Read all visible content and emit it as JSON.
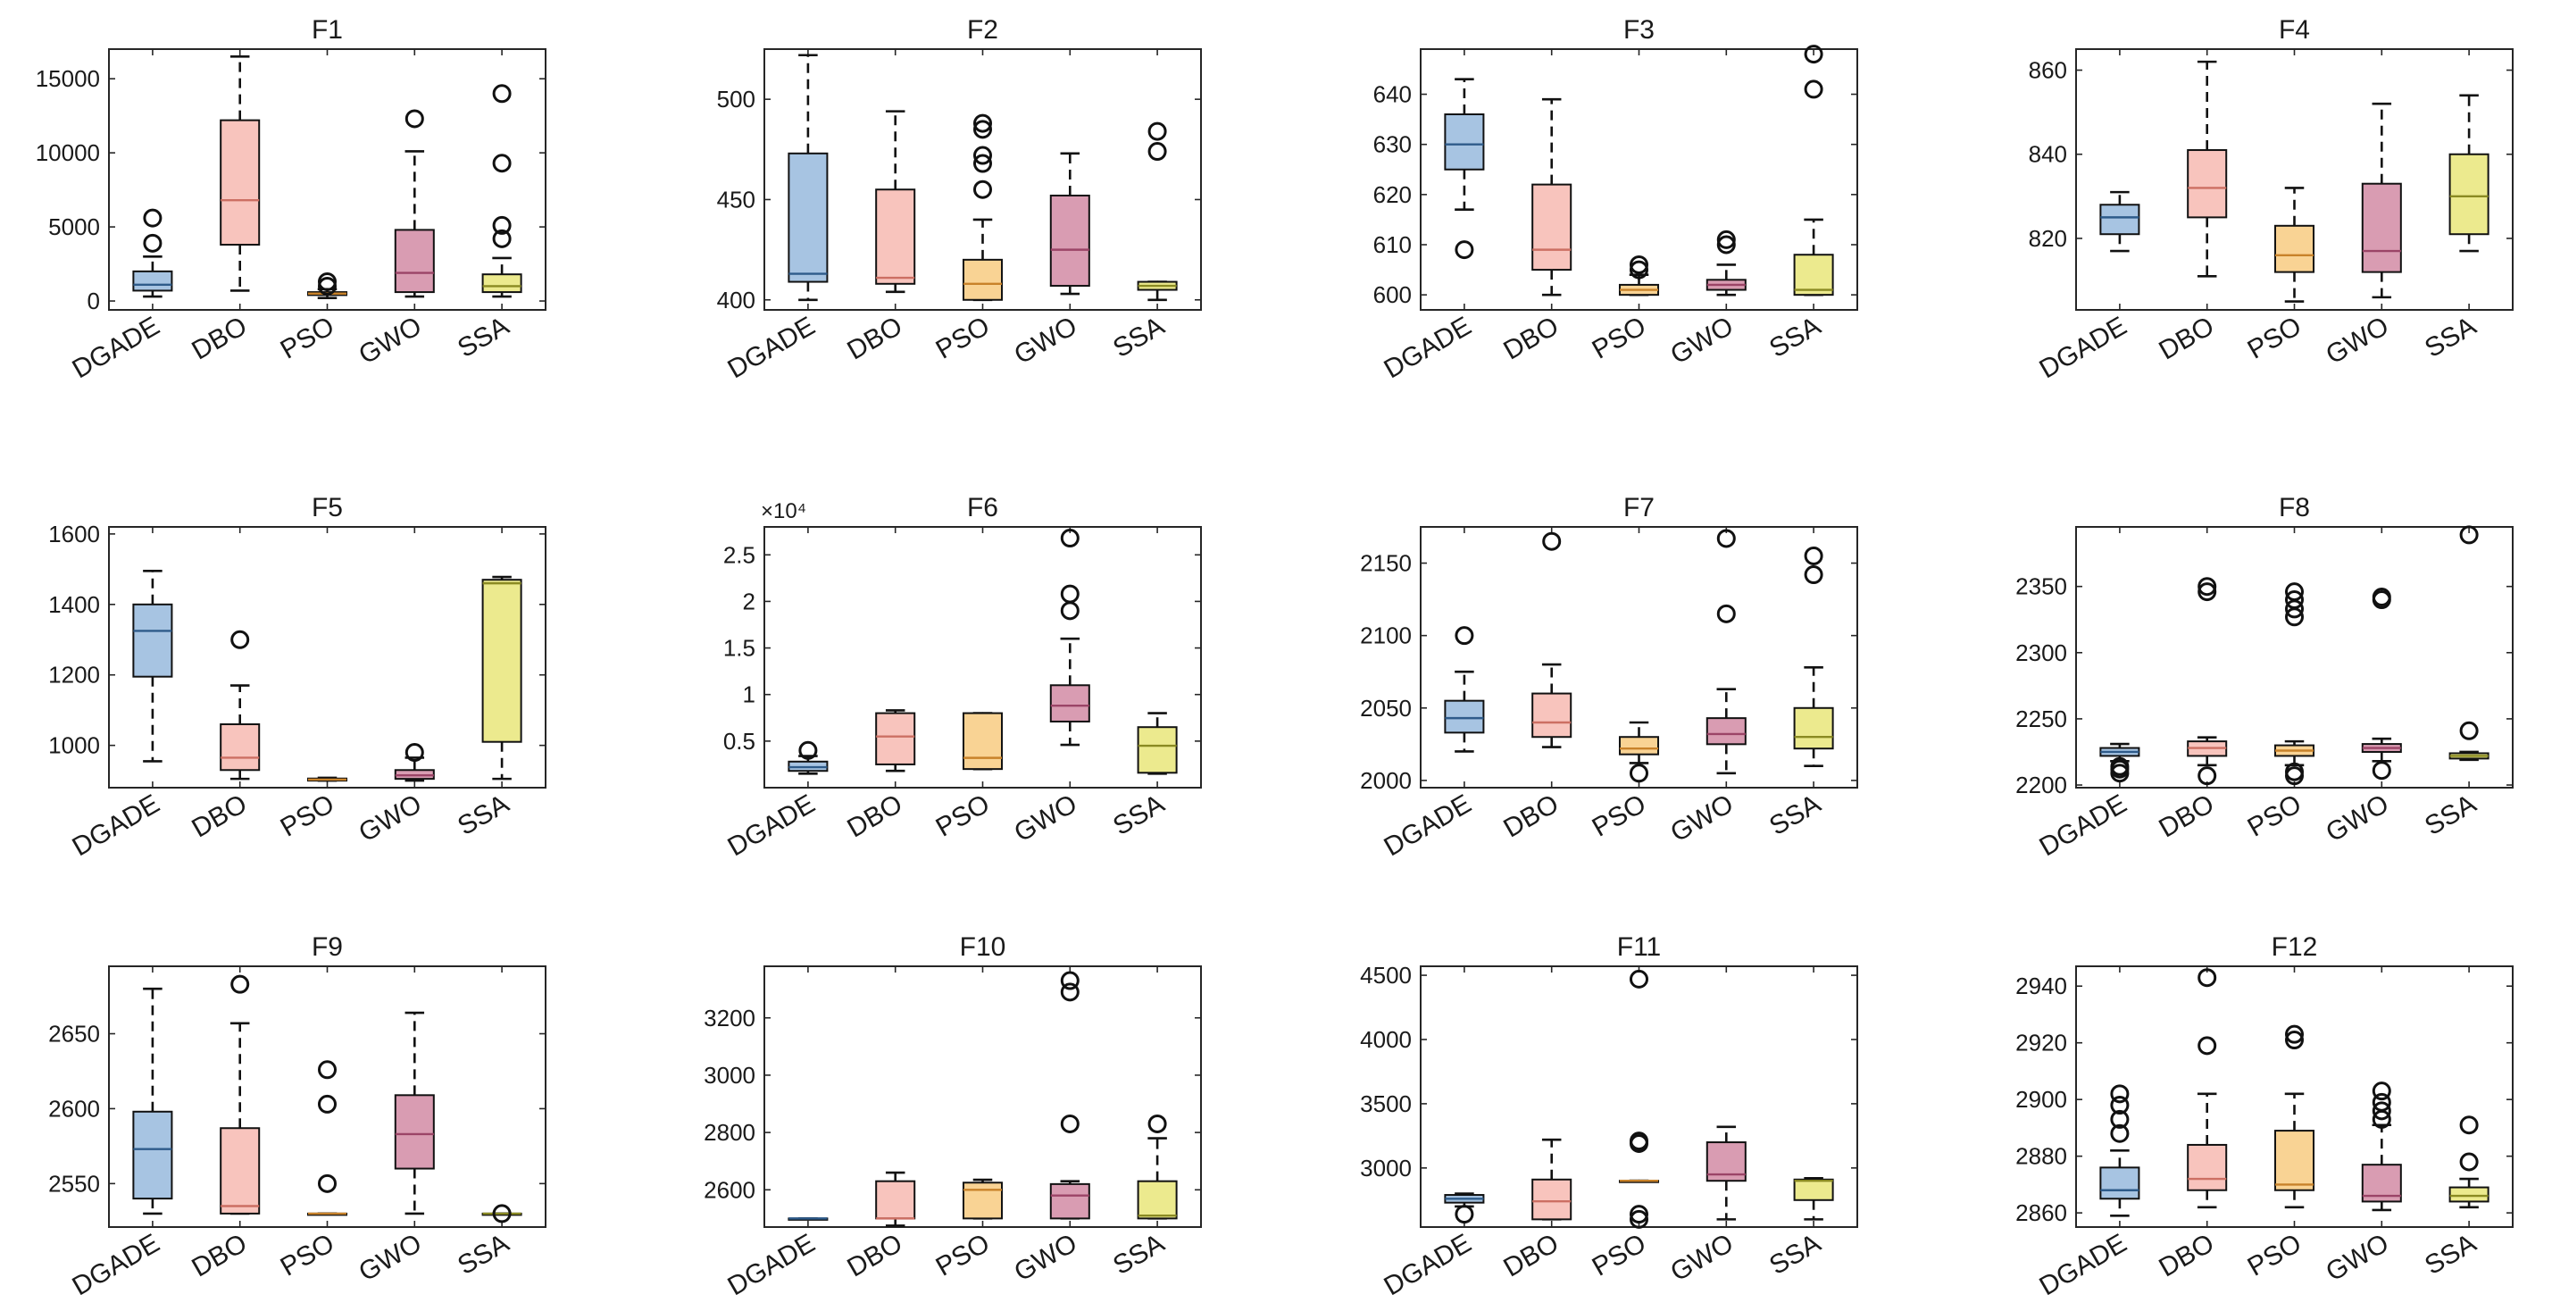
{
  "figure": {
    "categories": [
      "DGADE",
      "DBO",
      "PSO",
      "GWO",
      "SSA"
    ],
    "colors": {
      "DGADE": "#a7c4e2",
      "DBO": "#f8c4bd",
      "PSO": "#f9d394",
      "GWO": "#d99cb2",
      "SSA": "#ecea8e",
      "DGADE_median": "#2e5b8a",
      "DBO_median": "#cc6f63",
      "PSO_median": "#c8822a",
      "GWO_median": "#9b4467",
      "SSA_median": "#8a8a22"
    }
  },
  "chart_data": [
    {
      "type": "box",
      "title": "F1",
      "categories": [
        "DGADE",
        "DBO",
        "PSO",
        "GWO",
        "SSA"
      ],
      "ylim": [
        -600,
        17000
      ],
      "yticks": [
        0,
        5000,
        10000,
        15000
      ],
      "ytick_labels": [
        "0",
        "5000",
        "10000",
        "15000"
      ],
      "exponent_label": "",
      "boxes": [
        {
          "q1": 700,
          "median": 1100,
          "q3": 2000,
          "whislo": 300,
          "whishi": 3000,
          "outliers": [
            3900,
            5600
          ]
        },
        {
          "q1": 3800,
          "median": 6800,
          "q3": 12200,
          "whislo": 700,
          "whishi": 16500,
          "outliers": []
        },
        {
          "q1": 400,
          "median": 500,
          "q3": 600,
          "whislo": 200,
          "whishi": 800,
          "outliers": [
            1000,
            1300
          ]
        },
        {
          "q1": 600,
          "median": 1900,
          "q3": 4800,
          "whislo": 300,
          "whishi": 10100,
          "outliers": [
            12300
          ]
        },
        {
          "q1": 600,
          "median": 1000,
          "q3": 1800,
          "whislo": 300,
          "whishi": 2900,
          "outliers": [
            4200,
            5100,
            9300,
            14000
          ]
        }
      ]
    },
    {
      "type": "box",
      "title": "F2",
      "categories": [
        "DGADE",
        "DBO",
        "PSO",
        "GWO",
        "SSA"
      ],
      "ylim": [
        395,
        525
      ],
      "yticks": [
        400,
        450,
        500
      ],
      "ytick_labels": [
        "400",
        "450",
        "500"
      ],
      "exponent_label": "",
      "boxes": [
        {
          "q1": 409,
          "median": 413,
          "q3": 473,
          "whislo": 400,
          "whishi": 522,
          "outliers": []
        },
        {
          "q1": 408,
          "median": 411,
          "q3": 455,
          "whislo": 404,
          "whishi": 494,
          "outliers": []
        },
        {
          "q1": 400,
          "median": 408,
          "q3": 420,
          "whislo": 400,
          "whishi": 440,
          "outliers": [
            455,
            468,
            472,
            485,
            488
          ]
        },
        {
          "q1": 407,
          "median": 425,
          "q3": 452,
          "whislo": 403,
          "whishi": 473,
          "outliers": []
        },
        {
          "q1": 405,
          "median": 407,
          "q3": 409,
          "whislo": 400,
          "whishi": 409,
          "outliers": [
            474,
            484
          ]
        }
      ]
    },
    {
      "type": "box",
      "title": "F3",
      "categories": [
        "DGADE",
        "DBO",
        "PSO",
        "GWO",
        "SSA"
      ],
      "ylim": [
        597,
        649
      ],
      "yticks": [
        600,
        610,
        620,
        630,
        640
      ],
      "ytick_labels": [
        "600",
        "610",
        "620",
        "630",
        "640"
      ],
      "exponent_label": "",
      "boxes": [
        {
          "q1": 625,
          "median": 630,
          "q3": 636,
          "whislo": 617,
          "whishi": 643,
          "outliers": [
            609
          ]
        },
        {
          "q1": 605,
          "median": 609,
          "q3": 622,
          "whislo": 600,
          "whishi": 639,
          "outliers": []
        },
        {
          "q1": 600,
          "median": 601,
          "q3": 602,
          "whislo": 600,
          "whishi": 604,
          "outliers": [
            605,
            606
          ]
        },
        {
          "q1": 601,
          "median": 602,
          "q3": 603,
          "whislo": 600,
          "whishi": 606,
          "outliers": [
            610,
            611
          ]
        },
        {
          "q1": 600,
          "median": 601,
          "q3": 608,
          "whislo": 600,
          "whishi": 615,
          "outliers": [
            641,
            648
          ]
        }
      ]
    },
    {
      "type": "box",
      "title": "F4",
      "categories": [
        "DGADE",
        "DBO",
        "PSO",
        "GWO",
        "SSA"
      ],
      "ylim": [
        803,
        865
      ],
      "yticks": [
        820,
        840,
        860
      ],
      "ytick_labels": [
        "820",
        "840",
        "860"
      ],
      "exponent_label": "",
      "boxes": [
        {
          "q1": 821,
          "median": 825,
          "q3": 828,
          "whislo": 817,
          "whishi": 831,
          "outliers": []
        },
        {
          "q1": 825,
          "median": 832,
          "q3": 841,
          "whislo": 811,
          "whishi": 862,
          "outliers": []
        },
        {
          "q1": 812,
          "median": 816,
          "q3": 823,
          "whislo": 805,
          "whishi": 832,
          "outliers": []
        },
        {
          "q1": 812,
          "median": 817,
          "q3": 833,
          "whislo": 806,
          "whishi": 852,
          "outliers": []
        },
        {
          "q1": 821,
          "median": 830,
          "q3": 840,
          "whislo": 817,
          "whishi": 854,
          "outliers": []
        }
      ]
    },
    {
      "type": "box",
      "title": "F5",
      "categories": [
        "DGADE",
        "DBO",
        "PSO",
        "GWO",
        "SSA"
      ],
      "ylim": [
        880,
        1620
      ],
      "yticks": [
        1000,
        1200,
        1400,
        1600
      ],
      "ytick_labels": [
        "1000",
        "1200",
        "1400",
        "1600"
      ],
      "exponent_label": "",
      "boxes": [
        {
          "q1": 1195,
          "median": 1325,
          "q3": 1400,
          "whislo": 955,
          "whishi": 1495,
          "outliers": []
        },
        {
          "q1": 930,
          "median": 965,
          "q3": 1060,
          "whislo": 905,
          "whishi": 1170,
          "outliers": [
            1300
          ]
        },
        {
          "q1": 900,
          "median": 903,
          "q3": 906,
          "whislo": 900,
          "whishi": 908,
          "outliers": []
        },
        {
          "q1": 905,
          "median": 915,
          "q3": 930,
          "whislo": 900,
          "whishi": 965,
          "outliers": [
            980
          ]
        },
        {
          "q1": 1010,
          "median": 1460,
          "q3": 1470,
          "whislo": 905,
          "whishi": 1478,
          "outliers": []
        }
      ]
    },
    {
      "type": "box",
      "title": "F6",
      "categories": [
        "DGADE",
        "DBO",
        "PSO",
        "GWO",
        "SSA"
      ],
      "ylim": [
        0,
        28000
      ],
      "yticks": [
        5000,
        10000,
        15000,
        20000,
        25000
      ],
      "ytick_labels": [
        "0.5",
        "1",
        "1.5",
        "2",
        "2.5"
      ],
      "exponent_label": "×10⁴",
      "boxes": [
        {
          "q1": 1800,
          "median": 2200,
          "q3": 2800,
          "whislo": 1500,
          "whishi": 3400,
          "outliers": [
            4000
          ]
        },
        {
          "q1": 2500,
          "median": 5500,
          "q3": 8000,
          "whislo": 1800,
          "whishi": 8300,
          "outliers": []
        },
        {
          "q1": 2000,
          "median": 3200,
          "q3": 8000,
          "whislo": 2000,
          "whishi": 8000,
          "outliers": []
        },
        {
          "q1": 7100,
          "median": 8800,
          "q3": 11000,
          "whislo": 4600,
          "whishi": 16000,
          "outliers": [
            19000,
            20800,
            26800
          ]
        },
        {
          "q1": 1600,
          "median": 4500,
          "q3": 6500,
          "whislo": 1500,
          "whishi": 8000,
          "outliers": []
        }
      ]
    },
    {
      "type": "box",
      "title": "F7",
      "categories": [
        "DGADE",
        "DBO",
        "PSO",
        "GWO",
        "SSA"
      ],
      "ylim": [
        1995,
        2175
      ],
      "yticks": [
        2000,
        2050,
        2100,
        2150
      ],
      "ytick_labels": [
        "2000",
        "2050",
        "2100",
        "2150"
      ],
      "exponent_label": "",
      "boxes": [
        {
          "q1": 2033,
          "median": 2043,
          "q3": 2055,
          "whislo": 2020,
          "whishi": 2075,
          "outliers": [
            2100
          ]
        },
        {
          "q1": 2030,
          "median": 2040,
          "q3": 2060,
          "whislo": 2023,
          "whishi": 2080,
          "outliers": [
            2165
          ]
        },
        {
          "q1": 2018,
          "median": 2022,
          "q3": 2030,
          "whislo": 2012,
          "whishi": 2040,
          "outliers": [
            2005
          ]
        },
        {
          "q1": 2025,
          "median": 2032,
          "q3": 2043,
          "whislo": 2005,
          "whishi": 2063,
          "outliers": [
            2115,
            2167
          ]
        },
        {
          "q1": 2022,
          "median": 2030,
          "q3": 2050,
          "whislo": 2010,
          "whishi": 2078,
          "outliers": [
            2142,
            2155
          ]
        }
      ]
    },
    {
      "type": "box",
      "title": "F8",
      "categories": [
        "DGADE",
        "DBO",
        "PSO",
        "GWO",
        "SSA"
      ],
      "ylim": [
        2198,
        2395
      ],
      "yticks": [
        2200,
        2250,
        2300,
        2350
      ],
      "ytick_labels": [
        "2200",
        "2250",
        "2300",
        "2350"
      ],
      "exponent_label": "",
      "boxes": [
        {
          "q1": 2222,
          "median": 2225,
          "q3": 2228,
          "whislo": 2218,
          "whishi": 2231,
          "outliers": [
            2209,
            2212,
            2214
          ]
        },
        {
          "q1": 2222,
          "median": 2228,
          "q3": 2233,
          "whislo": 2215,
          "whishi": 2236,
          "outliers": [
            2207,
            2346,
            2350
          ]
        },
        {
          "q1": 2222,
          "median": 2226,
          "q3": 2230,
          "whislo": 2215,
          "whishi": 2233,
          "outliers": [
            2207,
            2210,
            2327,
            2333,
            2340,
            2346
          ]
        },
        {
          "q1": 2225,
          "median": 2228,
          "q3": 2231,
          "whislo": 2218,
          "whishi": 2235,
          "outliers": [
            2211,
            2340,
            2342
          ]
        },
        {
          "q1": 2220,
          "median": 2222,
          "q3": 2224,
          "whislo": 2219,
          "whishi": 2225,
          "outliers": [
            2241,
            2389
          ]
        }
      ]
    },
    {
      "type": "box",
      "title": "F9",
      "categories": [
        "DGADE",
        "DBO",
        "PSO",
        "GWO",
        "SSA"
      ],
      "ylim": [
        2521,
        2695
      ],
      "yticks": [
        2550,
        2600,
        2650
      ],
      "ytick_labels": [
        "2550",
        "2600",
        "2650"
      ],
      "exponent_label": "",
      "boxes": [
        {
          "q1": 2540,
          "median": 2573,
          "q3": 2598,
          "whislo": 2530,
          "whishi": 2680,
          "outliers": []
        },
        {
          "q1": 2530,
          "median": 2535,
          "q3": 2587,
          "whislo": 2530,
          "whishi": 2657,
          "outliers": [
            2683
          ]
        },
        {
          "q1": 2530,
          "median": 2530,
          "q3": 2530,
          "whislo": 2530,
          "whishi": 2530,
          "outliers": [
            2550,
            2603,
            2626
          ]
        },
        {
          "q1": 2560,
          "median": 2583,
          "q3": 2609,
          "whislo": 2530,
          "whishi": 2664,
          "outliers": []
        },
        {
          "q1": 2530,
          "median": 2530,
          "q3": 2530,
          "whislo": 2530,
          "whishi": 2530,
          "outliers": [
            2530
          ]
        }
      ]
    },
    {
      "type": "box",
      "title": "F10",
      "categories": [
        "DGADE",
        "DBO",
        "PSO",
        "GWO",
        "SSA"
      ],
      "ylim": [
        2470,
        3380
      ],
      "yticks": [
        2600,
        2800,
        3000,
        3200
      ],
      "ytick_labels": [
        "2600",
        "2800",
        "3000",
        "3200"
      ],
      "exponent_label": "",
      "boxes": [
        {
          "q1": 2500,
          "median": 2500,
          "q3": 2500,
          "whislo": 2500,
          "whishi": 2500,
          "outliers": []
        },
        {
          "q1": 2500,
          "median": 2500,
          "q3": 2630,
          "whislo": 2475,
          "whishi": 2660,
          "outliers": []
        },
        {
          "q1": 2500,
          "median": 2600,
          "q3": 2625,
          "whislo": 2500,
          "whishi": 2635,
          "outliers": []
        },
        {
          "q1": 2500,
          "median": 2580,
          "q3": 2620,
          "whislo": 2500,
          "whishi": 2630,
          "outliers": [
            2830,
            3290,
            3330
          ]
        },
        {
          "q1": 2500,
          "median": 2510,
          "q3": 2630,
          "whislo": 2500,
          "whishi": 2780,
          "outliers": [
            2830
          ]
        }
      ]
    },
    {
      "type": "box",
      "title": "F11",
      "categories": [
        "DGADE",
        "DBO",
        "PSO",
        "GWO",
        "SSA"
      ],
      "ylim": [
        2540,
        4570
      ],
      "yticks": [
        3000,
        3500,
        4000,
        4500
      ],
      "ytick_labels": [
        "3000",
        "3500",
        "4000",
        "4500"
      ],
      "exponent_label": "",
      "boxes": [
        {
          "q1": 2730,
          "median": 2760,
          "q3": 2790,
          "whislo": 2700,
          "whishi": 2800,
          "outliers": [
            2640
          ]
        },
        {
          "q1": 2600,
          "median": 2740,
          "q3": 2910,
          "whislo": 2600,
          "whishi": 3220,
          "outliers": []
        },
        {
          "q1": 2900,
          "median": 2900,
          "q3": 2900,
          "whislo": 2900,
          "whishi": 2900,
          "outliers": [
            2600,
            2640,
            3190,
            3210,
            4470
          ]
        },
        {
          "q1": 2900,
          "median": 2950,
          "q3": 3200,
          "whislo": 2600,
          "whishi": 3320,
          "outliers": []
        },
        {
          "q1": 2750,
          "median": 2900,
          "q3": 2910,
          "whislo": 2600,
          "whishi": 2920,
          "outliers": []
        }
      ]
    },
    {
      "type": "box",
      "title": "F12",
      "categories": [
        "DGADE",
        "DBO",
        "PSO",
        "GWO",
        "SSA"
      ],
      "ylim": [
        2855,
        2947
      ],
      "yticks": [
        2860,
        2880,
        2900,
        2920,
        2940
      ],
      "ytick_labels": [
        "2860",
        "2880",
        "2900",
        "2920",
        "2940"
      ],
      "exponent_label": "",
      "boxes": [
        {
          "q1": 2865,
          "median": 2868,
          "q3": 2876,
          "whislo": 2859,
          "whishi": 2882,
          "outliers": [
            2888,
            2893,
            2898,
            2902
          ]
        },
        {
          "q1": 2868,
          "median": 2872,
          "q3": 2884,
          "whislo": 2862,
          "whishi": 2902,
          "outliers": [
            2919,
            2943
          ]
        },
        {
          "q1": 2868,
          "median": 2870,
          "q3": 2889,
          "whislo": 2862,
          "whishi": 2902,
          "outliers": [
            2921,
            2923
          ]
        },
        {
          "q1": 2864,
          "median": 2866,
          "q3": 2877,
          "whislo": 2861,
          "whishi": 2891,
          "outliers": [
            2893,
            2896,
            2899,
            2903
          ]
        },
        {
          "q1": 2864,
          "median": 2866,
          "q3": 2869,
          "whislo": 2862,
          "whishi": 2872,
          "outliers": [
            2878,
            2891
          ]
        }
      ]
    }
  ]
}
